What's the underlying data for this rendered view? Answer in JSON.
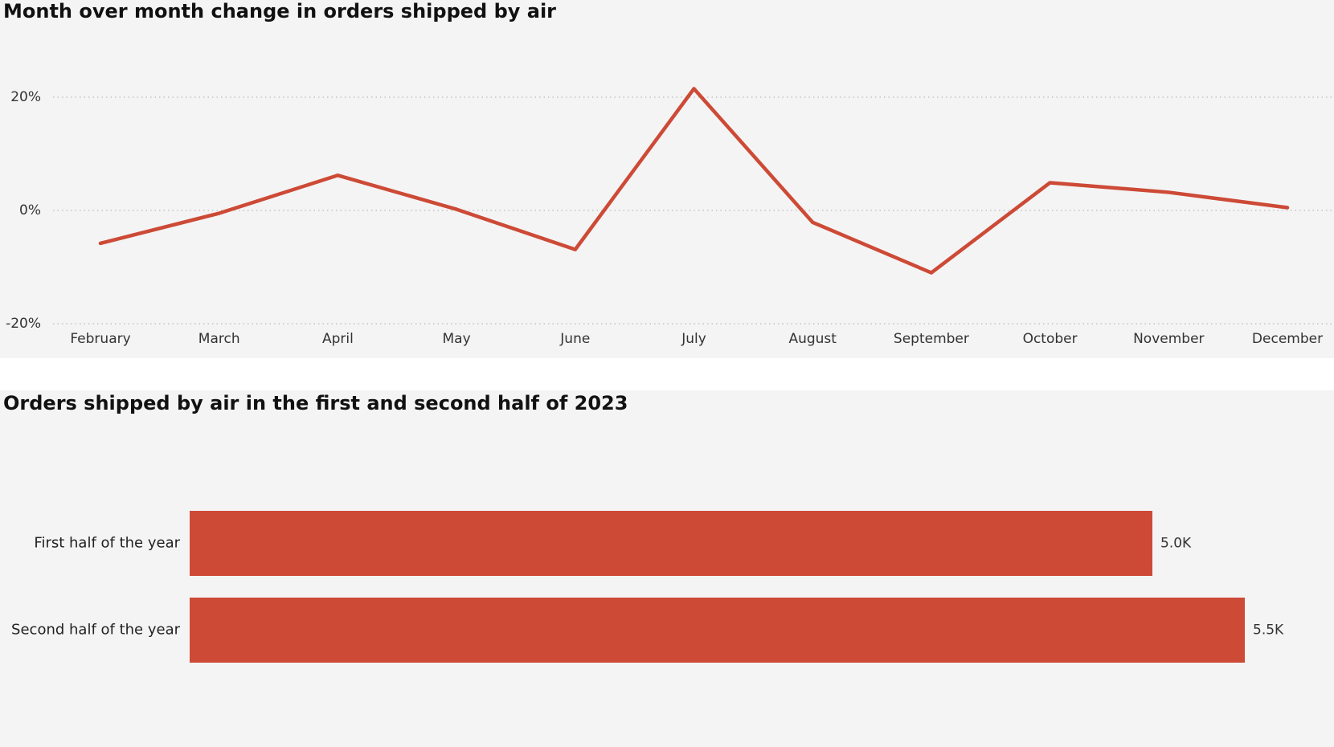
{
  "chart_data": [
    {
      "type": "line",
      "title": "Month over month change in orders shipped by air",
      "xlabel": "",
      "ylabel": "",
      "categories": [
        "February",
        "March",
        "April",
        "May",
        "June",
        "July",
        "August",
        "September",
        "October",
        "November",
        "December"
      ],
      "series": [
        {
          "values": [
            -5.8,
            -0.5,
            6.2,
            0.2,
            -6.9,
            21.5,
            -2.1,
            -11.0,
            4.9,
            3.2,
            0.5
          ]
        }
      ],
      "ylim": [
        -20,
        20
      ],
      "yticks": [
        20,
        0,
        -20
      ],
      "ytick_labels": [
        "20%",
        "0%",
        "-20%"
      ],
      "grid": "horizontal dotted",
      "color": "#cd4a36"
    },
    {
      "type": "bar",
      "orientation": "horizontal",
      "title": "Orders shipped by air in the first and second half of 2023",
      "categories": [
        "First half of the year",
        "Second half of the year"
      ],
      "values": [
        5000,
        5480
      ],
      "data_labels": [
        "5.0K",
        "5.5K"
      ],
      "xlim": [
        0,
        6000
      ],
      "color": "#cd4a36"
    }
  ]
}
